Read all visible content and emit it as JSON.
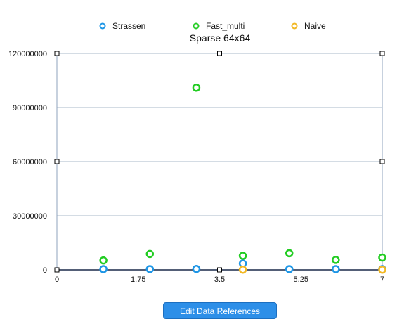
{
  "chart_data": {
    "type": "scatter",
    "title": "Sparse 64x64",
    "xlabel": "",
    "ylabel": "",
    "xlim": [
      0,
      7
    ],
    "ylim": [
      0,
      120000000
    ],
    "x_ticks": [
      "0",
      "1.75",
      "3.5",
      "5.25",
      "7"
    ],
    "y_ticks": [
      "0",
      "30000000",
      "60000000",
      "90000000",
      "120000000"
    ],
    "legend_position": "top",
    "grid": true,
    "series": [
      {
        "name": "Strassen",
        "color": "#1e96e6",
        "points": [
          [
            1,
            400000
          ],
          [
            2,
            400000
          ],
          [
            3,
            500000
          ],
          [
            4,
            3500000
          ],
          [
            5,
            400000
          ],
          [
            6,
            400000
          ],
          [
            7,
            400000
          ]
        ]
      },
      {
        "name": "Fast_multi",
        "color": "#22cc22",
        "points": [
          [
            1,
            5200000
          ],
          [
            2,
            8800000
          ],
          [
            3,
            101000000
          ],
          [
            4,
            7800000
          ],
          [
            5,
            9200000
          ],
          [
            6,
            5500000
          ],
          [
            7,
            6800000
          ]
        ]
      },
      {
        "name": "Naive",
        "color": "#f2b824",
        "points": [
          [
            4,
            100000
          ],
          [
            7,
            100000
          ]
        ]
      }
    ]
  },
  "edit_button_label": "Edit Data References"
}
